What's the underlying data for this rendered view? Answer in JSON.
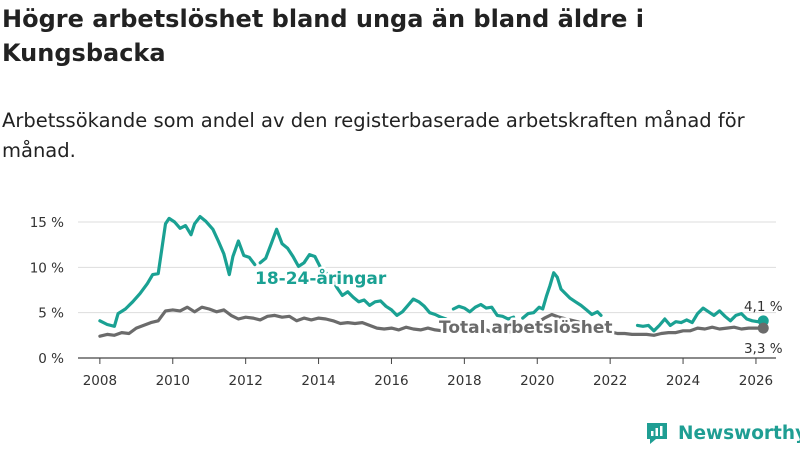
{
  "title": "Högre arbetslöshet bland unga än bland äldre i Kungsbacka",
  "subtitle": "Arbetssökande som andel av den registerbaserade arbetskraften månad för månad.",
  "brand": {
    "name": "Newsworthy",
    "icon": "newsworthy-logo-icon"
  },
  "colors": {
    "young": "#1aa193",
    "total": "#6b6b6b",
    "grid": "#dddddd",
    "text": "#333333"
  },
  "chart_data": {
    "type": "line",
    "title": "Högre arbetslöshet bland unga än bland äldre i Kungsbacka",
    "xlabel": "",
    "ylabel": "",
    "xlim": [
      2007.4,
      2026.55
    ],
    "ylim": [
      0,
      15
    ],
    "yticks": [
      0,
      5,
      10,
      15
    ],
    "ytick_labels": [
      "0 %",
      "5 %",
      "10 %",
      "15 %"
    ],
    "xticks": [
      2008,
      2010,
      2012,
      2014,
      2016,
      2018,
      2020,
      2022,
      2024,
      2026
    ],
    "xtick_labels": [
      "2008",
      "2010",
      "2012",
      "2014",
      "2016",
      "2018",
      "2020",
      "2022",
      "2024",
      "2026"
    ],
    "series": [
      {
        "name": "18-24-åringar",
        "label": "18-24-åringar",
        "last_value_label": "4,1 %",
        "points": [
          [
            2008.0,
            4.1
          ],
          [
            2008.2,
            3.7
          ],
          [
            2008.4,
            3.5
          ],
          [
            2008.5,
            4.9
          ],
          [
            2008.7,
            5.4
          ],
          [
            2008.9,
            6.2
          ],
          [
            2009.1,
            7.1
          ],
          [
            2009.3,
            8.2
          ],
          [
            2009.45,
            9.2
          ],
          [
            2009.6,
            9.3
          ],
          [
            2009.7,
            12.0
          ],
          [
            2009.8,
            14.8
          ],
          [
            2009.9,
            15.4
          ],
          [
            2010.05,
            15.0
          ],
          [
            2010.2,
            14.3
          ],
          [
            2010.35,
            14.6
          ],
          [
            2010.5,
            13.6
          ],
          [
            2010.6,
            14.8
          ],
          [
            2010.75,
            15.6
          ],
          [
            2010.9,
            15.1
          ],
          [
            2011.1,
            14.2
          ],
          [
            2011.25,
            12.9
          ],
          [
            2011.4,
            11.5
          ],
          [
            2011.55,
            9.2
          ],
          [
            2011.65,
            11.2
          ],
          [
            2011.8,
            12.9
          ],
          [
            2011.95,
            11.3
          ],
          [
            2012.1,
            11.1
          ],
          [
            2012.25,
            10.3
          ],
          [
            null,
            null
          ],
          [
            2012.4,
            10.5
          ],
          [
            2012.55,
            11.0
          ],
          [
            2012.7,
            12.6
          ],
          [
            2012.85,
            14.2
          ],
          [
            2013.0,
            12.6
          ],
          [
            2013.15,
            12.1
          ],
          [
            2013.3,
            11.2
          ],
          [
            2013.45,
            10.1
          ],
          [
            2013.6,
            10.5
          ],
          [
            2013.75,
            11.4
          ],
          [
            2013.9,
            11.2
          ],
          [
            2014.05,
            10.0
          ],
          [
            2014.2,
            9.4
          ],
          [
            2014.35,
            8.8
          ],
          [
            2014.5,
            7.8
          ],
          [
            2014.65,
            6.9
          ],
          [
            2014.8,
            7.3
          ],
          [
            2014.95,
            6.7
          ],
          [
            2015.1,
            6.2
          ],
          [
            2015.25,
            6.4
          ],
          [
            2015.4,
            5.8
          ],
          [
            2015.55,
            6.2
          ],
          [
            2015.7,
            6.3
          ],
          [
            2015.85,
            5.7
          ],
          [
            2016.0,
            5.3
          ],
          [
            2016.15,
            4.7
          ],
          [
            2016.3,
            5.1
          ],
          [
            2016.45,
            5.8
          ],
          [
            2016.6,
            6.5
          ],
          [
            2016.75,
            6.2
          ],
          [
            2016.9,
            5.7
          ],
          [
            2017.05,
            5.0
          ],
          [
            2017.2,
            4.8
          ],
          [
            2017.35,
            4.5
          ],
          [
            2017.5,
            4.3
          ],
          [
            null,
            null
          ],
          [
            2017.7,
            5.4
          ],
          [
            2017.85,
            5.7
          ],
          [
            2018.0,
            5.5
          ],
          [
            2018.15,
            5.1
          ],
          [
            2018.3,
            5.6
          ],
          [
            2018.45,
            5.9
          ],
          [
            2018.6,
            5.5
          ],
          [
            2018.75,
            5.6
          ],
          [
            2018.9,
            4.7
          ],
          [
            2019.05,
            4.6
          ],
          [
            2019.2,
            4.3
          ],
          [
            2019.35,
            4.5
          ],
          [
            null,
            null
          ],
          [
            2019.6,
            4.4
          ],
          [
            2019.75,
            4.9
          ],
          [
            2019.9,
            5.0
          ],
          [
            2020.05,
            5.6
          ],
          [
            2020.15,
            5.4
          ],
          [
            2020.25,
            6.8
          ],
          [
            2020.35,
            8.0
          ],
          [
            2020.45,
            9.4
          ],
          [
            2020.55,
            8.9
          ],
          [
            2020.65,
            7.6
          ],
          [
            2020.75,
            7.2
          ],
          [
            2020.9,
            6.6
          ],
          [
            2021.05,
            6.2
          ],
          [
            2021.2,
            5.8
          ],
          [
            2021.35,
            5.3
          ],
          [
            2021.5,
            4.8
          ],
          [
            2021.65,
            5.1
          ],
          [
            2021.75,
            4.7
          ],
          [
            null,
            null
          ],
          [
            2022.75,
            3.6
          ],
          [
            2022.9,
            3.5
          ],
          [
            2023.05,
            3.6
          ],
          [
            2023.2,
            3.0
          ],
          [
            2023.35,
            3.6
          ],
          [
            2023.5,
            4.3
          ],
          [
            2023.65,
            3.6
          ],
          [
            2023.8,
            4.0
          ],
          [
            2023.95,
            3.9
          ],
          [
            2024.1,
            4.2
          ],
          [
            2024.25,
            3.9
          ],
          [
            2024.4,
            4.9
          ],
          [
            2024.55,
            5.5
          ],
          [
            2024.7,
            5.1
          ],
          [
            2024.85,
            4.7
          ],
          [
            2025.0,
            5.2
          ],
          [
            2025.15,
            4.6
          ],
          [
            2025.3,
            4.1
          ],
          [
            2025.45,
            4.7
          ],
          [
            2025.6,
            4.9
          ],
          [
            2025.75,
            4.3
          ],
          [
            2025.9,
            4.1
          ],
          [
            2026.05,
            4.0
          ],
          [
            2026.2,
            4.1
          ]
        ]
      },
      {
        "name": "Total arbetslöshet",
        "label": "Total arbetslöshet",
        "last_value_label": "3,3 %",
        "points": [
          [
            2008.0,
            2.4
          ],
          [
            2008.2,
            2.6
          ],
          [
            2008.4,
            2.5
          ],
          [
            2008.6,
            2.8
          ],
          [
            2008.8,
            2.7
          ],
          [
            2009.0,
            3.3
          ],
          [
            2009.2,
            3.6
          ],
          [
            2009.4,
            3.9
          ],
          [
            2009.6,
            4.1
          ],
          [
            2009.8,
            5.2
          ],
          [
            2010.0,
            5.3
          ],
          [
            2010.2,
            5.2
          ],
          [
            2010.4,
            5.6
          ],
          [
            2010.6,
            5.1
          ],
          [
            2010.8,
            5.6
          ],
          [
            2011.0,
            5.4
          ],
          [
            2011.2,
            5.1
          ],
          [
            2011.4,
            5.3
          ],
          [
            2011.6,
            4.7
          ],
          [
            2011.8,
            4.3
          ],
          [
            2012.0,
            4.5
          ],
          [
            2012.2,
            4.4
          ],
          [
            2012.4,
            4.2
          ],
          [
            2012.6,
            4.6
          ],
          [
            2012.8,
            4.7
          ],
          [
            2013.0,
            4.5
          ],
          [
            2013.2,
            4.6
          ],
          [
            2013.4,
            4.1
          ],
          [
            2013.6,
            4.4
          ],
          [
            2013.8,
            4.2
          ],
          [
            2014.0,
            4.4
          ],
          [
            2014.2,
            4.3
          ],
          [
            2014.4,
            4.1
          ],
          [
            2014.6,
            3.8
          ],
          [
            2014.8,
            3.9
          ],
          [
            2015.0,
            3.8
          ],
          [
            2015.2,
            3.9
          ],
          [
            2015.4,
            3.6
          ],
          [
            2015.6,
            3.3
          ],
          [
            2015.8,
            3.2
          ],
          [
            2016.0,
            3.3
          ],
          [
            2016.2,
            3.1
          ],
          [
            2016.4,
            3.4
          ],
          [
            2016.6,
            3.2
          ],
          [
            2016.8,
            3.1
          ],
          [
            2017.0,
            3.3
          ],
          [
            2017.2,
            3.1
          ],
          [
            2017.4,
            3.0
          ],
          [
            2017.6,
            3.0
          ],
          [
            2017.8,
            2.9
          ],
          [
            2018.0,
            3.0
          ],
          [
            2018.2,
            3.0
          ],
          [
            2018.4,
            2.9
          ],
          [
            2018.6,
            3.1
          ],
          [
            2018.8,
            2.8
          ],
          [
            2019.0,
            2.9
          ],
          [
            2019.2,
            2.9
          ],
          [
            2019.4,
            2.8
          ],
          [
            2019.6,
            2.9
          ],
          [
            2019.8,
            3.4
          ],
          [
            2020.0,
            3.9
          ],
          [
            2020.2,
            4.4
          ],
          [
            2020.4,
            4.8
          ],
          [
            2020.6,
            4.5
          ],
          [
            2020.8,
            4.3
          ],
          [
            2021.0,
            4.1
          ],
          [
            2021.2,
            3.9
          ],
          [
            2021.4,
            3.6
          ],
          [
            2021.6,
            3.4
          ],
          [
            2021.8,
            3.1
          ],
          [
            2022.0,
            2.9
          ],
          [
            2022.2,
            2.7
          ],
          [
            2022.4,
            2.7
          ],
          [
            2022.6,
            2.6
          ],
          [
            2022.8,
            2.6
          ],
          [
            2023.0,
            2.6
          ],
          [
            2023.2,
            2.5
          ],
          [
            2023.4,
            2.7
          ],
          [
            2023.6,
            2.8
          ],
          [
            2023.8,
            2.8
          ],
          [
            2024.0,
            3.0
          ],
          [
            2024.2,
            3.0
          ],
          [
            2024.4,
            3.3
          ],
          [
            2024.6,
            3.2
          ],
          [
            2024.8,
            3.4
          ],
          [
            2025.0,
            3.2
          ],
          [
            2025.2,
            3.3
          ],
          [
            2025.4,
            3.4
          ],
          [
            2025.6,
            3.2
          ],
          [
            2025.8,
            3.3
          ],
          [
            2026.0,
            3.3
          ],
          [
            2026.2,
            3.3
          ]
        ]
      }
    ]
  }
}
